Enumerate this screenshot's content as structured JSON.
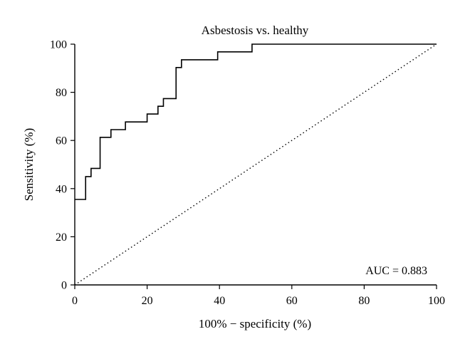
{
  "chart_data": {
    "type": "line",
    "title": "Asbestosis vs. healthy",
    "xlabel": "100% − specificity (%)",
    "ylabel": "Sensitivity (%)",
    "xlim": [
      0,
      100
    ],
    "ylim": [
      0,
      100
    ],
    "xticks": [
      0,
      20,
      40,
      60,
      80,
      100
    ],
    "yticks": [
      0,
      20,
      40,
      60,
      80,
      100
    ],
    "grid": false,
    "annotation": "AUC = 0.883",
    "series": [
      {
        "style": "step",
        "points": [
          [
            0,
            35.5
          ],
          [
            3,
            35.5
          ],
          [
            3,
            45
          ],
          [
            4.5,
            45
          ],
          [
            4.5,
            48.4
          ],
          [
            7,
            48.4
          ],
          [
            7,
            61.3
          ],
          [
            10,
            61.3
          ],
          [
            10,
            64.5
          ],
          [
            14,
            64.5
          ],
          [
            14,
            67.7
          ],
          [
            20,
            67.7
          ],
          [
            20,
            71
          ],
          [
            23,
            71
          ],
          [
            23,
            74.2
          ],
          [
            24.5,
            74.2
          ],
          [
            24.5,
            77.4
          ],
          [
            28,
            77.4
          ],
          [
            28,
            90.3
          ],
          [
            29.5,
            90.3
          ],
          [
            29.5,
            93.5
          ],
          [
            39.5,
            93.5
          ],
          [
            39.5,
            96.8
          ],
          [
            49,
            96.8
          ],
          [
            49,
            100
          ],
          [
            100,
            100
          ]
        ]
      },
      {
        "style": "reference-diagonal",
        "points": [
          [
            0,
            0
          ],
          [
            100,
            100
          ]
        ]
      }
    ]
  }
}
